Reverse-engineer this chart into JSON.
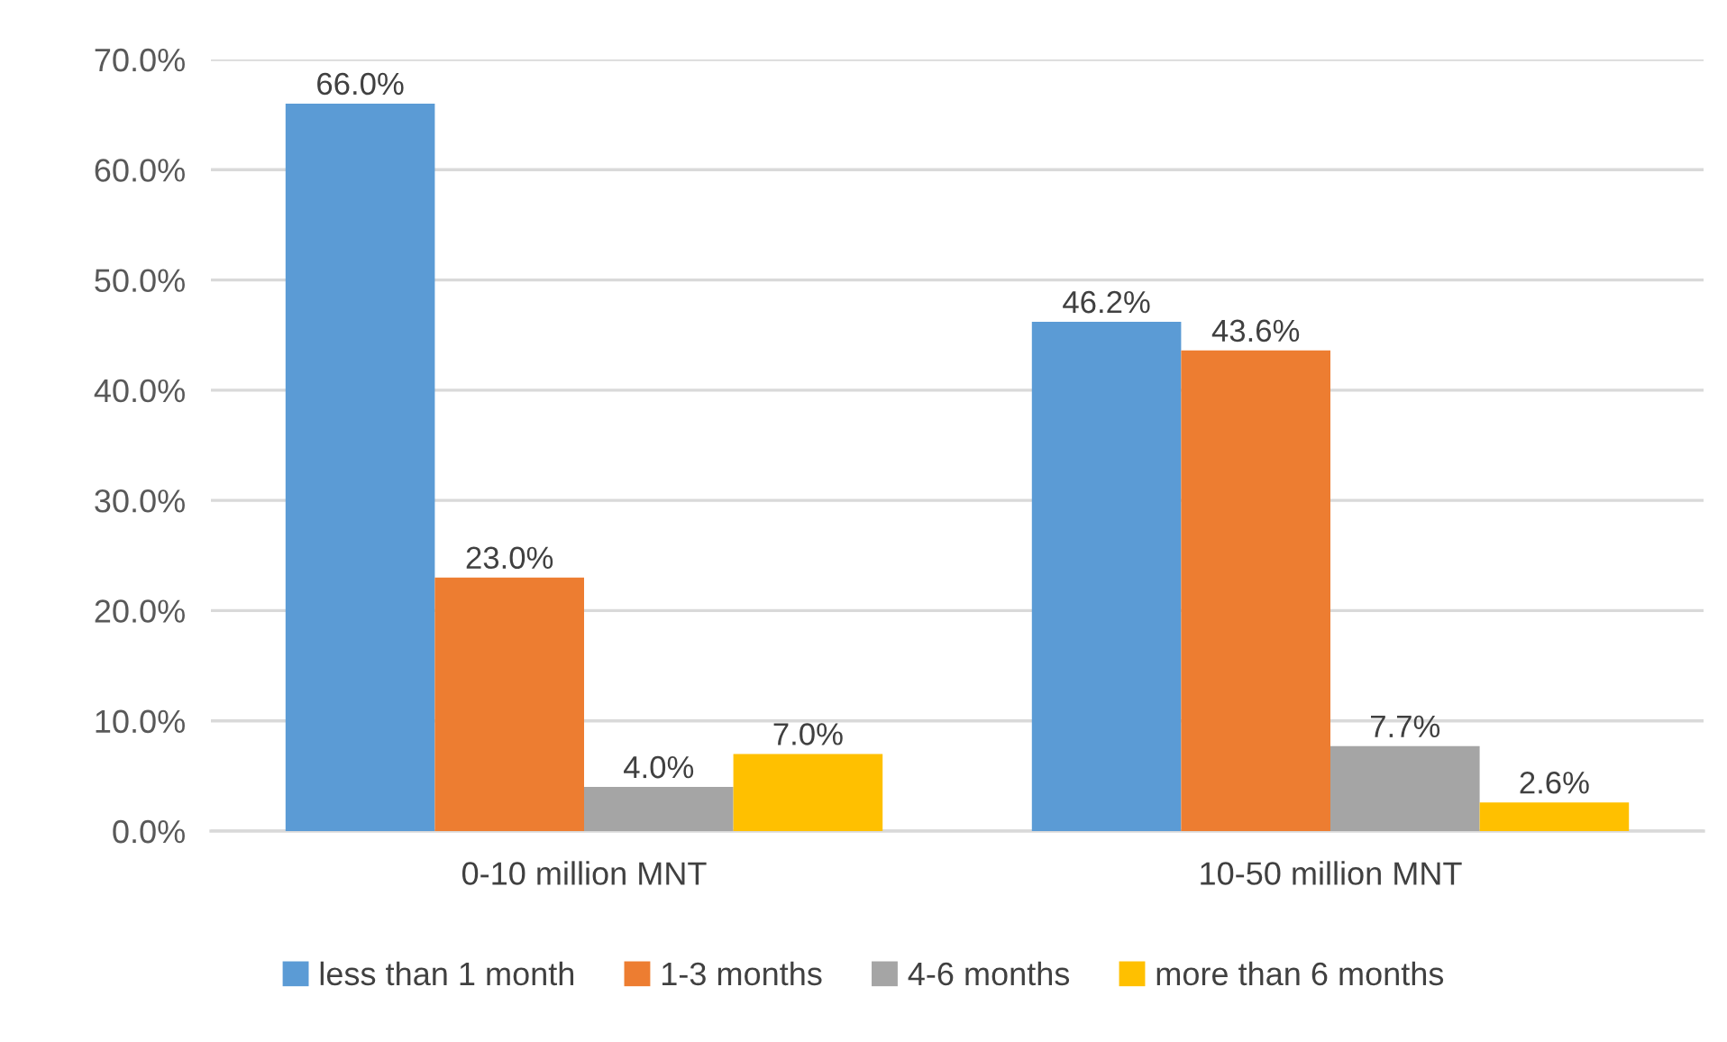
{
  "chart_data": {
    "type": "bar",
    "categories": [
      "0-10 million MNT",
      "10-50 million MNT"
    ],
    "series": [
      {
        "name": "less than 1 month",
        "color": "#5b9bd5",
        "values": [
          66.0,
          46.2
        ],
        "value_labels": [
          "66.0%",
          "46.2%"
        ]
      },
      {
        "name": "1-3 months",
        "color": "#ed7d31",
        "values": [
          23.0,
          43.6
        ],
        "value_labels": [
          "23.0%",
          "43.6%"
        ]
      },
      {
        "name": "4-6 months",
        "color": "#a5a5a5",
        "values": [
          4.0,
          7.7
        ],
        "value_labels": [
          "4.0%",
          "7.7%"
        ]
      },
      {
        "name": "more than 6 months",
        "color": "#ffc000",
        "values": [
          7.0,
          2.6
        ],
        "value_labels": [
          "7.0%",
          "2.6%"
        ]
      }
    ],
    "ylim": [
      0,
      70
    ],
    "yticks": [
      {
        "value": 0,
        "label": "0.0%"
      },
      {
        "value": 10,
        "label": "10.0%"
      },
      {
        "value": 20,
        "label": "20.0%"
      },
      {
        "value": 30,
        "label": "30.0%"
      },
      {
        "value": 40,
        "label": "40.0%"
      },
      {
        "value": 50,
        "label": "50.0%"
      },
      {
        "value": 60,
        "label": "60.0%"
      },
      {
        "value": 70,
        "label": "70.0%"
      }
    ],
    "grid": "y",
    "legend": "bottom"
  }
}
